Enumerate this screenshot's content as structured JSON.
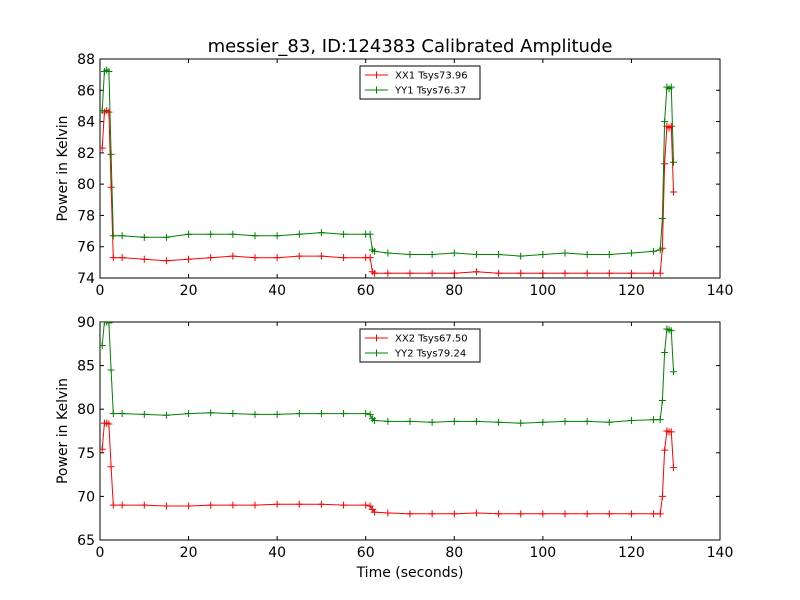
{
  "chart_data": [
    {
      "type": "line",
      "title": "messier_83, ID:124383 Calibrated Amplitude",
      "xlabel": "",
      "ylabel": "Power in Kelvin",
      "xlim": [
        0,
        140
      ],
      "ylim": [
        74,
        88
      ],
      "xticks": [
        0,
        20,
        40,
        60,
        80,
        100,
        120,
        140
      ],
      "yticks": [
        74,
        76,
        78,
        80,
        82,
        84,
        86,
        88
      ],
      "grid": false,
      "legend": "top-center",
      "series": [
        {
          "name": "XX1 Tsys73.96",
          "color": "#ff0000",
          "x": [
            0.5,
            1.0,
            1.5,
            2.0,
            2.5,
            3.0,
            5,
            10,
            15,
            20,
            25,
            30,
            35,
            40,
            45,
            50,
            55,
            60,
            61.0,
            61.5,
            62.0,
            65,
            70,
            75,
            80,
            85,
            90,
            95,
            100,
            105,
            110,
            115,
            120,
            125,
            126.5,
            127.0,
            127.5,
            128.0,
            128.5,
            129.0,
            129.5
          ],
          "y": [
            82.3,
            84.6,
            84.7,
            84.6,
            79.8,
            75.3,
            75.3,
            75.2,
            75.1,
            75.2,
            75.3,
            75.4,
            75.3,
            75.3,
            75.4,
            75.4,
            75.3,
            75.3,
            75.3,
            74.4,
            74.3,
            74.3,
            74.3,
            74.3,
            74.3,
            74.4,
            74.3,
            74.3,
            74.3,
            74.3,
            74.3,
            74.3,
            74.3,
            74.3,
            74.3,
            75.9,
            81.3,
            83.7,
            83.6,
            83.7,
            79.5
          ]
        },
        {
          "name": "YY1 Tsys76.37",
          "color": "#008000",
          "x": [
            0.5,
            1.0,
            1.5,
            2.0,
            2.5,
            3.0,
            5,
            10,
            15,
            20,
            25,
            30,
            35,
            40,
            45,
            50,
            55,
            60,
            61.0,
            61.5,
            62.0,
            65,
            70,
            75,
            80,
            85,
            90,
            95,
            100,
            105,
            110,
            115,
            120,
            125,
            126.5,
            127.0,
            127.5,
            128.0,
            128.5,
            129.0,
            129.5
          ],
          "y": [
            84.7,
            87.2,
            87.3,
            87.2,
            81.9,
            76.7,
            76.7,
            76.6,
            76.6,
            76.8,
            76.8,
            76.8,
            76.7,
            76.7,
            76.8,
            76.9,
            76.8,
            76.8,
            76.8,
            75.8,
            75.7,
            75.6,
            75.5,
            75.5,
            75.6,
            75.5,
            75.5,
            75.4,
            75.5,
            75.6,
            75.5,
            75.5,
            75.6,
            75.7,
            75.8,
            77.8,
            84.0,
            86.2,
            86.1,
            86.2,
            81.4
          ]
        }
      ]
    },
    {
      "type": "line",
      "title": "",
      "xlabel": "Time (seconds)",
      "ylabel": "Power in Kelvin",
      "xlim": [
        0,
        140
      ],
      "ylim": [
        65,
        90
      ],
      "xticks": [
        0,
        20,
        40,
        60,
        80,
        100,
        120,
        140
      ],
      "yticks": [
        65,
        70,
        75,
        80,
        85,
        90
      ],
      "grid": false,
      "legend": "top-center",
      "series": [
        {
          "name": "XX2 Tsys67.50",
          "color": "#ff0000",
          "x": [
            0.5,
            1.0,
            1.5,
            2.0,
            2.5,
            3.0,
            5,
            10,
            15,
            20,
            25,
            30,
            35,
            40,
            45,
            50,
            55,
            60,
            61.0,
            61.5,
            62.0,
            65,
            70,
            75,
            80,
            85,
            90,
            95,
            100,
            105,
            110,
            115,
            120,
            125,
            126.5,
            127.0,
            127.5,
            128.0,
            128.5,
            129.0,
            129.5
          ],
          "y": [
            75.4,
            78.4,
            78.4,
            78.3,
            73.4,
            69.0,
            69.0,
            69.0,
            68.9,
            68.9,
            69.0,
            69.0,
            69.0,
            69.1,
            69.1,
            69.1,
            69.0,
            69.0,
            68.9,
            68.5,
            68.2,
            68.1,
            68.0,
            68.0,
            68.0,
            68.1,
            68.0,
            68.0,
            68.0,
            68.0,
            68.0,
            68.0,
            68.0,
            68.0,
            68.0,
            70.0,
            75.3,
            77.5,
            77.4,
            77.4,
            73.3
          ]
        },
        {
          "name": "YY2 Tsys79.24",
          "color": "#008000",
          "x": [
            0.5,
            1.0,
            1.5,
            2.0,
            2.5,
            3.0,
            5,
            10,
            15,
            20,
            25,
            30,
            35,
            40,
            45,
            50,
            55,
            60,
            61.0,
            61.5,
            62.0,
            65,
            70,
            75,
            80,
            85,
            90,
            95,
            100,
            105,
            110,
            115,
            120,
            125,
            126.5,
            127.0,
            127.5,
            128.0,
            128.5,
            129.0,
            129.5
          ],
          "y": [
            87.3,
            90.0,
            90.0,
            89.9,
            84.5,
            79.5,
            79.5,
            79.4,
            79.3,
            79.5,
            79.6,
            79.5,
            79.4,
            79.4,
            79.5,
            79.5,
            79.5,
            79.5,
            79.4,
            78.9,
            78.7,
            78.6,
            78.6,
            78.5,
            78.6,
            78.6,
            78.5,
            78.4,
            78.5,
            78.6,
            78.6,
            78.5,
            78.7,
            78.8,
            78.8,
            81.0,
            86.5,
            89.2,
            89.1,
            89.0,
            84.3
          ]
        }
      ]
    }
  ]
}
